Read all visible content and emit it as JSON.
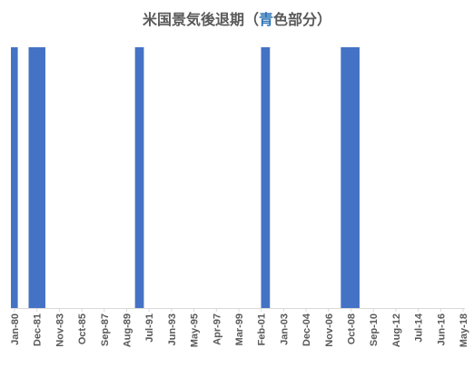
{
  "title": {
    "prefix": "米国景気後退期（",
    "highlight": "青",
    "suffix": "色部分）"
  },
  "colors": {
    "bar": "#4472c4",
    "axis": "#d9d9d9",
    "tick_text": "#595959",
    "title_highlight": "#2e75b6"
  },
  "chart_data": {
    "type": "bar",
    "title": "米国景気後退期（青色部分）",
    "x_start": "1980-01",
    "x_end": "2018-05",
    "tick_labels": [
      "Jan-80",
      "Dec-81",
      "Nov-83",
      "Oct-85",
      "Sep-87",
      "Aug-89",
      "Jul-91",
      "Jun-93",
      "May-95",
      "Apr-97",
      "Mar-99",
      "Feb-01",
      "Jan-03",
      "Dec-04",
      "Nov-06",
      "Oct-08",
      "Sep-10",
      "Aug-12",
      "Jul-14",
      "Jun-16",
      "May-18"
    ],
    "series": [
      {
        "values": [
          1
        ],
        "periods": [
          {
            "start": "1980-01",
            "end": "1980-07"
          },
          {
            "start": "1981-07",
            "end": "1982-11"
          },
          {
            "start": "1990-07",
            "end": "1991-03"
          },
          {
            "start": "2001-03",
            "end": "2001-11"
          },
          {
            "start": "2007-12",
            "end": "2009-06"
          }
        ]
      }
    ],
    "ylim": [
      0,
      1
    ],
    "grid": false,
    "legend": "none"
  }
}
